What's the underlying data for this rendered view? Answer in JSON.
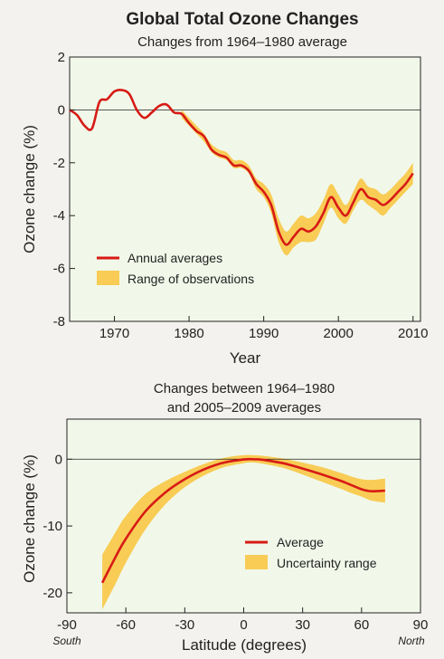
{
  "colors": {
    "plot_bg": "#f1f8e9",
    "line": "#d71a15",
    "band": "#f8cc55",
    "page_bg": "#f4f2ee"
  },
  "chart_data": [
    {
      "type": "line",
      "title": "Global Total Ozone Changes",
      "subtitle": "Changes from 1964–1980 average",
      "xlabel": "Year",
      "ylabel": "Ozone change (%)",
      "xlim": [
        1964,
        2011
      ],
      "ylim": [
        -8,
        2
      ],
      "xticks": [
        1970,
        1980,
        1990,
        2000,
        2010
      ],
      "yticks": [
        2,
        0,
        -2,
        -4,
        -6,
        -8
      ],
      "grid": false,
      "zero_line": true,
      "legend_position": "bottom-left",
      "series": [
        {
          "name": "Annual averages",
          "style": "line",
          "x": [
            1964,
            1965,
            1966,
            1967,
            1968,
            1969,
            1970,
            1971,
            1972,
            1973,
            1974,
            1975,
            1976,
            1977,
            1978,
            1979,
            1980,
            1981,
            1982,
            1983,
            1984,
            1985,
            1986,
            1987,
            1988,
            1989,
            1990,
            1991,
            1992,
            1993,
            1994,
            1995,
            1996,
            1997,
            1998,
            1999,
            2000,
            2001,
            2002,
            2003,
            2004,
            2005,
            2006,
            2007,
            2008,
            2009,
            2010
          ],
          "values": [
            0.0,
            -0.2,
            -0.6,
            -0.7,
            0.3,
            0.4,
            0.7,
            0.75,
            0.6,
            0.0,
            -0.3,
            -0.1,
            0.15,
            0.2,
            -0.1,
            -0.15,
            -0.5,
            -0.8,
            -1.0,
            -1.5,
            -1.7,
            -1.8,
            -2.1,
            -2.1,
            -2.3,
            -2.8,
            -3.1,
            -3.6,
            -4.6,
            -5.1,
            -4.8,
            -4.5,
            -4.6,
            -4.4,
            -3.9,
            -3.3,
            -3.7,
            -4.0,
            -3.5,
            -3.0,
            -3.3,
            -3.4,
            -3.6,
            -3.4,
            -3.1,
            -2.8,
            -2.4
          ]
        },
        {
          "name": "Range of observations",
          "style": "band",
          "x": [
            1979,
            1980,
            1981,
            1982,
            1983,
            1984,
            1985,
            1986,
            1987,
            1988,
            1989,
            1990,
            1991,
            1992,
            1993,
            1994,
            1995,
            1996,
            1997,
            1998,
            1999,
            2000,
            2001,
            2002,
            2003,
            2004,
            2005,
            2006,
            2007,
            2008,
            2009,
            2010
          ],
          "low": [
            -0.3,
            -0.6,
            -0.9,
            -1.2,
            -1.6,
            -1.8,
            -1.9,
            -2.2,
            -2.2,
            -2.4,
            -3.0,
            -3.3,
            -3.9,
            -5.0,
            -5.5,
            -5.2,
            -5.0,
            -5.0,
            -4.9,
            -4.3,
            -3.7,
            -4.1,
            -4.3,
            -3.8,
            -3.4,
            -3.6,
            -3.8,
            -4.0,
            -3.7,
            -3.4,
            -3.1,
            -2.8
          ],
          "high": [
            0.0,
            -0.3,
            -0.6,
            -0.9,
            -1.3,
            -1.5,
            -1.6,
            -1.9,
            -1.9,
            -2.1,
            -2.6,
            -2.8,
            -3.2,
            -4.1,
            -4.6,
            -4.3,
            -4.0,
            -4.1,
            -3.9,
            -3.4,
            -2.8,
            -3.2,
            -3.6,
            -3.1,
            -2.6,
            -2.9,
            -3.0,
            -3.2,
            -3.0,
            -2.7,
            -2.4,
            -2.0
          ]
        }
      ]
    },
    {
      "type": "line",
      "title": "Changes between 1964–1980\nand 2005–2009 averages",
      "xlabel": "Latitude (degrees)",
      "ylabel": "Ozone change (%)",
      "xlim": [
        -90,
        90
      ],
      "ylim": [
        -23,
        6
      ],
      "xticks": [
        -90,
        -60,
        -30,
        0,
        30,
        60,
        90
      ],
      "yticks": [
        0,
        -10,
        -20
      ],
      "x_end_labels": {
        "left": "South",
        "right": "North"
      },
      "grid": false,
      "zero_line": true,
      "legend_position": "bottom-right",
      "series": [
        {
          "name": "Average",
          "style": "line",
          "x": [
            -72,
            -65,
            -60,
            -50,
            -40,
            -30,
            -20,
            -10,
            0,
            5,
            10,
            20,
            30,
            40,
            50,
            55,
            60,
            65,
            72
          ],
          "values": [
            -18.5,
            -14.5,
            -11.9,
            -7.8,
            -5.0,
            -3.0,
            -1.5,
            -0.5,
            -0.05,
            0.0,
            -0.1,
            -0.6,
            -1.4,
            -2.3,
            -3.3,
            -3.9,
            -4.5,
            -4.8,
            -4.7
          ]
        },
        {
          "name": "Uncertainty range",
          "style": "band",
          "x": [
            -72,
            -65,
            -60,
            -50,
            -40,
            -30,
            -20,
            -10,
            0,
            5,
            10,
            20,
            30,
            40,
            50,
            55,
            60,
            65,
            72
          ],
          "low": [
            -22.5,
            -18.5,
            -15.5,
            -10.5,
            -6.8,
            -4.2,
            -2.4,
            -1.2,
            -0.6,
            -0.5,
            -0.7,
            -1.3,
            -2.3,
            -3.4,
            -4.5,
            -5.1,
            -5.6,
            -6.2,
            -6.5
          ],
          "high": [
            -14.3,
            -10.8,
            -8.5,
            -5.2,
            -3.3,
            -1.9,
            -0.7,
            0.2,
            0.6,
            0.6,
            0.5,
            0.1,
            -0.5,
            -1.2,
            -2.1,
            -2.6,
            -3.0,
            -3.1,
            -2.9
          ]
        }
      ]
    }
  ]
}
